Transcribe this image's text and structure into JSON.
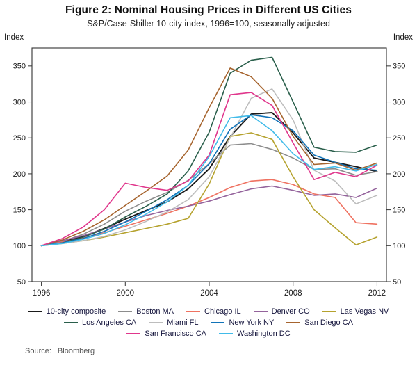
{
  "header": {
    "title": "Figure 2: Nominal Housing Prices in Different US Cities",
    "subtitle": "S&P/Case-Shiller 10-city index, 1996=100, seasonally adjusted"
  },
  "footer": {
    "source_label": "Source:",
    "source_value": "Bloomberg"
  },
  "chart_data": {
    "type": "line",
    "title": "Figure 2: Nominal Housing Prices in Different US Cities",
    "subtitle": "S&P/Case-Shiller 10-city index, 1996=100, seasonally adjusted",
    "xlabel": "",
    "ylabel_left": "Index",
    "ylabel_right": "Index",
    "grid": false,
    "legend_position": "bottom",
    "x": [
      1996,
      1997,
      1998,
      1999,
      2000,
      2001,
      2002,
      2003,
      2004,
      2005,
      2006,
      2007,
      2008,
      2009,
      2010,
      2011,
      2012
    ],
    "xticks": [
      1996,
      2000,
      2004,
      2008,
      2012
    ],
    "yticks": [
      50,
      100,
      150,
      200,
      250,
      300,
      350
    ],
    "xlim": [
      1995.55,
      2012.45
    ],
    "ylim": [
      50,
      375
    ],
    "series": [
      {
        "name": "10-city composite",
        "color": "#1a1a1a",
        "values": [
          100,
          105,
          113,
          124,
          137,
          149,
          161,
          179,
          207,
          252,
          283,
          285,
          257,
          222,
          216,
          210,
          203
        ]
      },
      {
        "name": "Boston MA",
        "color": "#8c8c8c",
        "values": [
          100,
          106,
          116,
          130,
          148,
          162,
          174,
          191,
          214,
          240,
          242,
          234,
          222,
          206,
          207,
          198,
          203
        ]
      },
      {
        "name": "Chicago IL",
        "color": "#ef7261",
        "values": [
          100,
          105,
          111,
          118,
          127,
          136,
          145,
          155,
          167,
          181,
          190,
          192,
          185,
          172,
          167,
          132,
          130
        ]
      },
      {
        "name": "Denver CO",
        "color": "#94639c",
        "values": [
          100,
          107,
          114,
          123,
          133,
          142,
          149,
          155,
          162,
          171,
          179,
          183,
          177,
          170,
          172,
          167,
          180
        ]
      },
      {
        "name": "Las Vegas NV",
        "color": "#b5a22e",
        "values": [
          100,
          103,
          107,
          112,
          118,
          124,
          130,
          138,
          186,
          252,
          257,
          248,
          196,
          150,
          125,
          101,
          112
        ]
      },
      {
        "name": "Los Angeles CA",
        "color": "#2a5f4b",
        "values": [
          100,
          104,
          112,
          123,
          140,
          155,
          172,
          204,
          258,
          340,
          358,
          362,
          300,
          237,
          231,
          230,
          240
        ]
      },
      {
        "name": "Miami FL",
        "color": "#bdbdbd",
        "values": [
          100,
          103,
          107,
          113,
          122,
          134,
          147,
          164,
          196,
          250,
          305,
          318,
          275,
          205,
          190,
          158,
          170
        ]
      },
      {
        "name": "New York NY",
        "color": "#1173b8",
        "values": [
          100,
          104,
          110,
          120,
          133,
          148,
          164,
          184,
          214,
          262,
          282,
          278,
          260,
          226,
          216,
          207,
          205
        ]
      },
      {
        "name": "San Diego CA",
        "color": "#a6642e",
        "values": [
          100,
          108,
          120,
          136,
          156,
          176,
          197,
          233,
          292,
          347,
          335,
          305,
          252,
          213,
          215,
          205,
          215
        ]
      },
      {
        "name": "San Francisco CA",
        "color": "#e0368c",
        "values": [
          100,
          110,
          126,
          150,
          187,
          181,
          177,
          190,
          226,
          310,
          313,
          295,
          243,
          192,
          202,
          196,
          212
        ]
      },
      {
        "name": "Washington DC",
        "color": "#41bbe9",
        "values": [
          100,
          103,
          109,
          117,
          129,
          144,
          161,
          184,
          224,
          278,
          281,
          260,
          228,
          206,
          210,
          204,
          213
        ]
      }
    ],
    "legend_rows": [
      [
        0,
        1,
        2,
        3,
        4
      ],
      [
        5,
        6,
        7,
        8
      ],
      [
        9,
        10
      ]
    ]
  }
}
